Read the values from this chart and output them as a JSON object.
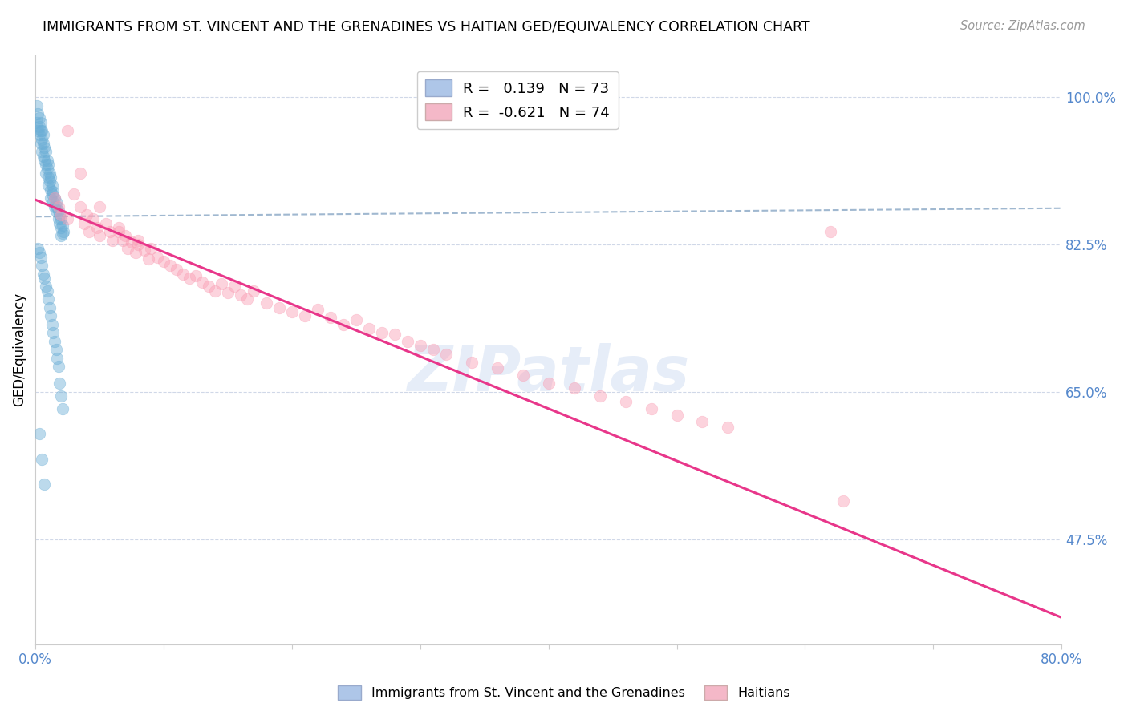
{
  "title": "IMMIGRANTS FROM ST. VINCENT AND THE GRENADINES VS HAITIAN GED/EQUIVALENCY CORRELATION CHART",
  "source": "Source: ZipAtlas.com",
  "ylabel": "GED/Equivalency",
  "ytick_labels": [
    "100.0%",
    "82.5%",
    "65.0%",
    "47.5%"
  ],
  "ytick_values": [
    1.0,
    0.825,
    0.65,
    0.475
  ],
  "xlim": [
    0.0,
    0.8
  ],
  "ylim": [
    0.35,
    1.05
  ],
  "legend_blue_label": "R =   0.139   N = 73",
  "legend_pink_label": "R =  -0.621   N = 74",
  "legend_blue_color": "#aec6e8",
  "legend_pink_color": "#f4b8c8",
  "watermark": "ZIPatlas",
  "blue_scatter_x": [
    0.001,
    0.001,
    0.002,
    0.002,
    0.003,
    0.003,
    0.003,
    0.004,
    0.004,
    0.004,
    0.005,
    0.005,
    0.005,
    0.006,
    0.006,
    0.006,
    0.007,
    0.007,
    0.008,
    0.008,
    0.008,
    0.009,
    0.009,
    0.01,
    0.01,
    0.01,
    0.011,
    0.011,
    0.012,
    0.012,
    0.012,
    0.013,
    0.013,
    0.014,
    0.014,
    0.015,
    0.015,
    0.016,
    0.016,
    0.017,
    0.018,
    0.018,
    0.019,
    0.019,
    0.02,
    0.02,
    0.02,
    0.021,
    0.021,
    0.022,
    0.002,
    0.003,
    0.004,
    0.005,
    0.006,
    0.007,
    0.008,
    0.009,
    0.01,
    0.011,
    0.012,
    0.013,
    0.014,
    0.015,
    0.016,
    0.017,
    0.018,
    0.019,
    0.02,
    0.021,
    0.003,
    0.005,
    0.007
  ],
  "blue_scatter_y": [
    0.99,
    0.97,
    0.98,
    0.96,
    0.975,
    0.965,
    0.955,
    0.97,
    0.96,
    0.945,
    0.96,
    0.95,
    0.935,
    0.955,
    0.945,
    0.93,
    0.94,
    0.925,
    0.935,
    0.92,
    0.91,
    0.925,
    0.915,
    0.92,
    0.905,
    0.895,
    0.91,
    0.9,
    0.905,
    0.89,
    0.88,
    0.895,
    0.885,
    0.888,
    0.875,
    0.88,
    0.87,
    0.875,
    0.865,
    0.87,
    0.865,
    0.855,
    0.86,
    0.85,
    0.855,
    0.845,
    0.835,
    0.848,
    0.838,
    0.84,
    0.82,
    0.815,
    0.81,
    0.8,
    0.79,
    0.785,
    0.775,
    0.77,
    0.76,
    0.75,
    0.74,
    0.73,
    0.72,
    0.71,
    0.7,
    0.69,
    0.68,
    0.66,
    0.645,
    0.63,
    0.6,
    0.57,
    0.54
  ],
  "pink_scatter_x": [
    0.015,
    0.018,
    0.02,
    0.025,
    0.03,
    0.035,
    0.038,
    0.04,
    0.042,
    0.045,
    0.048,
    0.05,
    0.055,
    0.058,
    0.06,
    0.065,
    0.068,
    0.07,
    0.072,
    0.075,
    0.078,
    0.08,
    0.085,
    0.088,
    0.09,
    0.095,
    0.1,
    0.105,
    0.11,
    0.115,
    0.12,
    0.125,
    0.13,
    0.135,
    0.14,
    0.145,
    0.15,
    0.155,
    0.16,
    0.165,
    0.17,
    0.18,
    0.19,
    0.2,
    0.21,
    0.22,
    0.23,
    0.24,
    0.25,
    0.26,
    0.27,
    0.28,
    0.29,
    0.3,
    0.31,
    0.32,
    0.34,
    0.36,
    0.38,
    0.4,
    0.42,
    0.44,
    0.46,
    0.48,
    0.5,
    0.52,
    0.54,
    0.025,
    0.035,
    0.05,
    0.065,
    0.08,
    0.62,
    0.63
  ],
  "pink_scatter_y": [
    0.88,
    0.87,
    0.86,
    0.855,
    0.885,
    0.87,
    0.85,
    0.86,
    0.84,
    0.855,
    0.845,
    0.835,
    0.85,
    0.84,
    0.83,
    0.845,
    0.83,
    0.835,
    0.82,
    0.828,
    0.815,
    0.825,
    0.818,
    0.808,
    0.82,
    0.81,
    0.805,
    0.8,
    0.795,
    0.79,
    0.785,
    0.788,
    0.78,
    0.775,
    0.77,
    0.778,
    0.768,
    0.775,
    0.765,
    0.76,
    0.77,
    0.755,
    0.75,
    0.745,
    0.74,
    0.748,
    0.738,
    0.73,
    0.735,
    0.725,
    0.72,
    0.718,
    0.71,
    0.705,
    0.7,
    0.695,
    0.685,
    0.678,
    0.67,
    0.66,
    0.655,
    0.645,
    0.638,
    0.63,
    0.622,
    0.615,
    0.608,
    0.96,
    0.91,
    0.87,
    0.84,
    0.83,
    0.84,
    0.52
  ],
  "pink_line_y_at_0": 0.878,
  "pink_line_y_at_80": 0.382,
  "blue_line_y_at_0": 0.858,
  "blue_line_y_at_80": 0.868,
  "blue_scatter_color": "#6baed6",
  "pink_scatter_color": "#fa9fb5",
  "pink_line_color": "#e8368a",
  "dashed_line_color": "#a0b8d0",
  "grid_color": "#d0d8e8",
  "background_color": "#ffffff"
}
